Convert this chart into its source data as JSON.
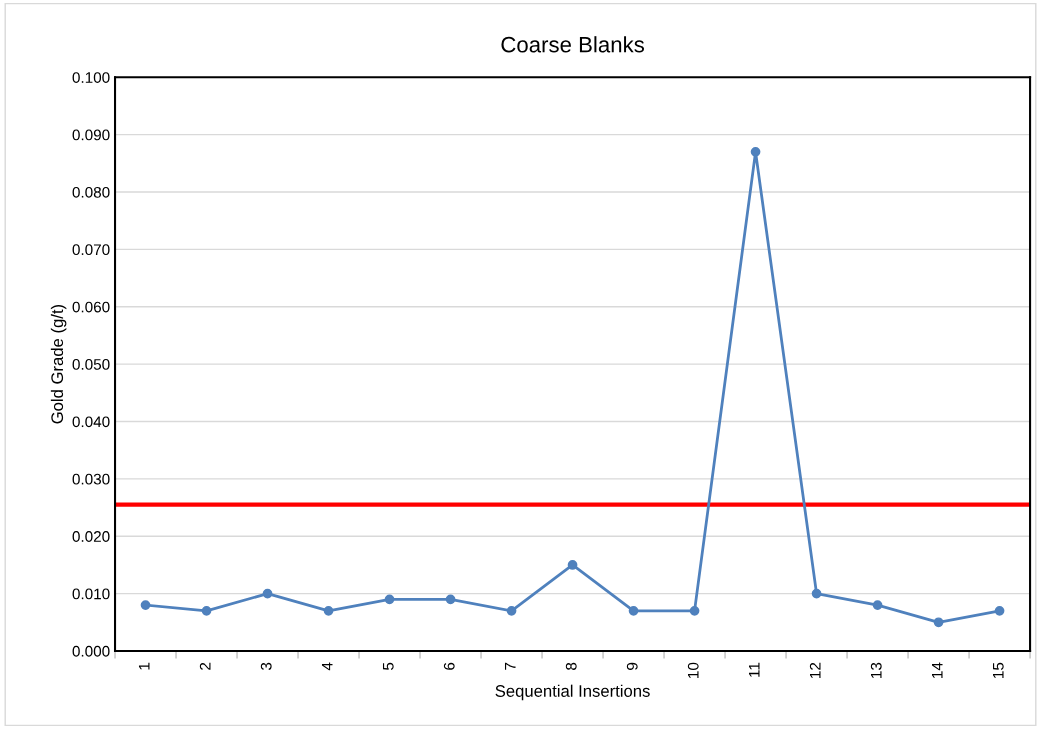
{
  "chart_data": {
    "type": "line",
    "title": "Coarse Blanks",
    "xlabel": "Sequential Insertions",
    "ylabel": "Gold Grade (g/t)",
    "categories": [
      "1",
      "2",
      "3",
      "4",
      "5",
      "6",
      "7",
      "8",
      "9",
      "10",
      "11",
      "12",
      "13",
      "14",
      "15"
    ],
    "series": [
      {
        "color": "#4f81bd",
        "values": [
          0.008,
          0.007,
          0.01,
          0.007,
          0.009,
          0.009,
          0.007,
          0.015,
          0.007,
          0.007,
          0.087,
          0.01,
          0.008,
          0.005,
          0.007
        ]
      }
    ],
    "ylim": [
      0,
      0.1
    ],
    "yticks": [
      {
        "value": 0,
        "label": "0.000"
      },
      {
        "value": 0.01,
        "label": "0.010"
      },
      {
        "value": 0.02,
        "label": "0.020"
      },
      {
        "value": 0.03,
        "label": "0.030"
      },
      {
        "value": 0.04,
        "label": "0.040"
      },
      {
        "value": 0.05,
        "label": "0.050"
      },
      {
        "value": 0.06,
        "label": "0.060"
      },
      {
        "value": 0.07,
        "label": "0.070"
      },
      {
        "value": 0.08,
        "label": "0.080"
      },
      {
        "value": 0.09,
        "label": "0.090"
      },
      {
        "value": 0.1,
        "label": "0.100"
      }
    ],
    "ref_lines": [
      {
        "axis": "y",
        "value": 0.0255,
        "color": "#ff0000",
        "line_style": "solid"
      }
    ],
    "grid": "y",
    "marker": "circle",
    "line_style": "solid",
    "legend": false
  }
}
